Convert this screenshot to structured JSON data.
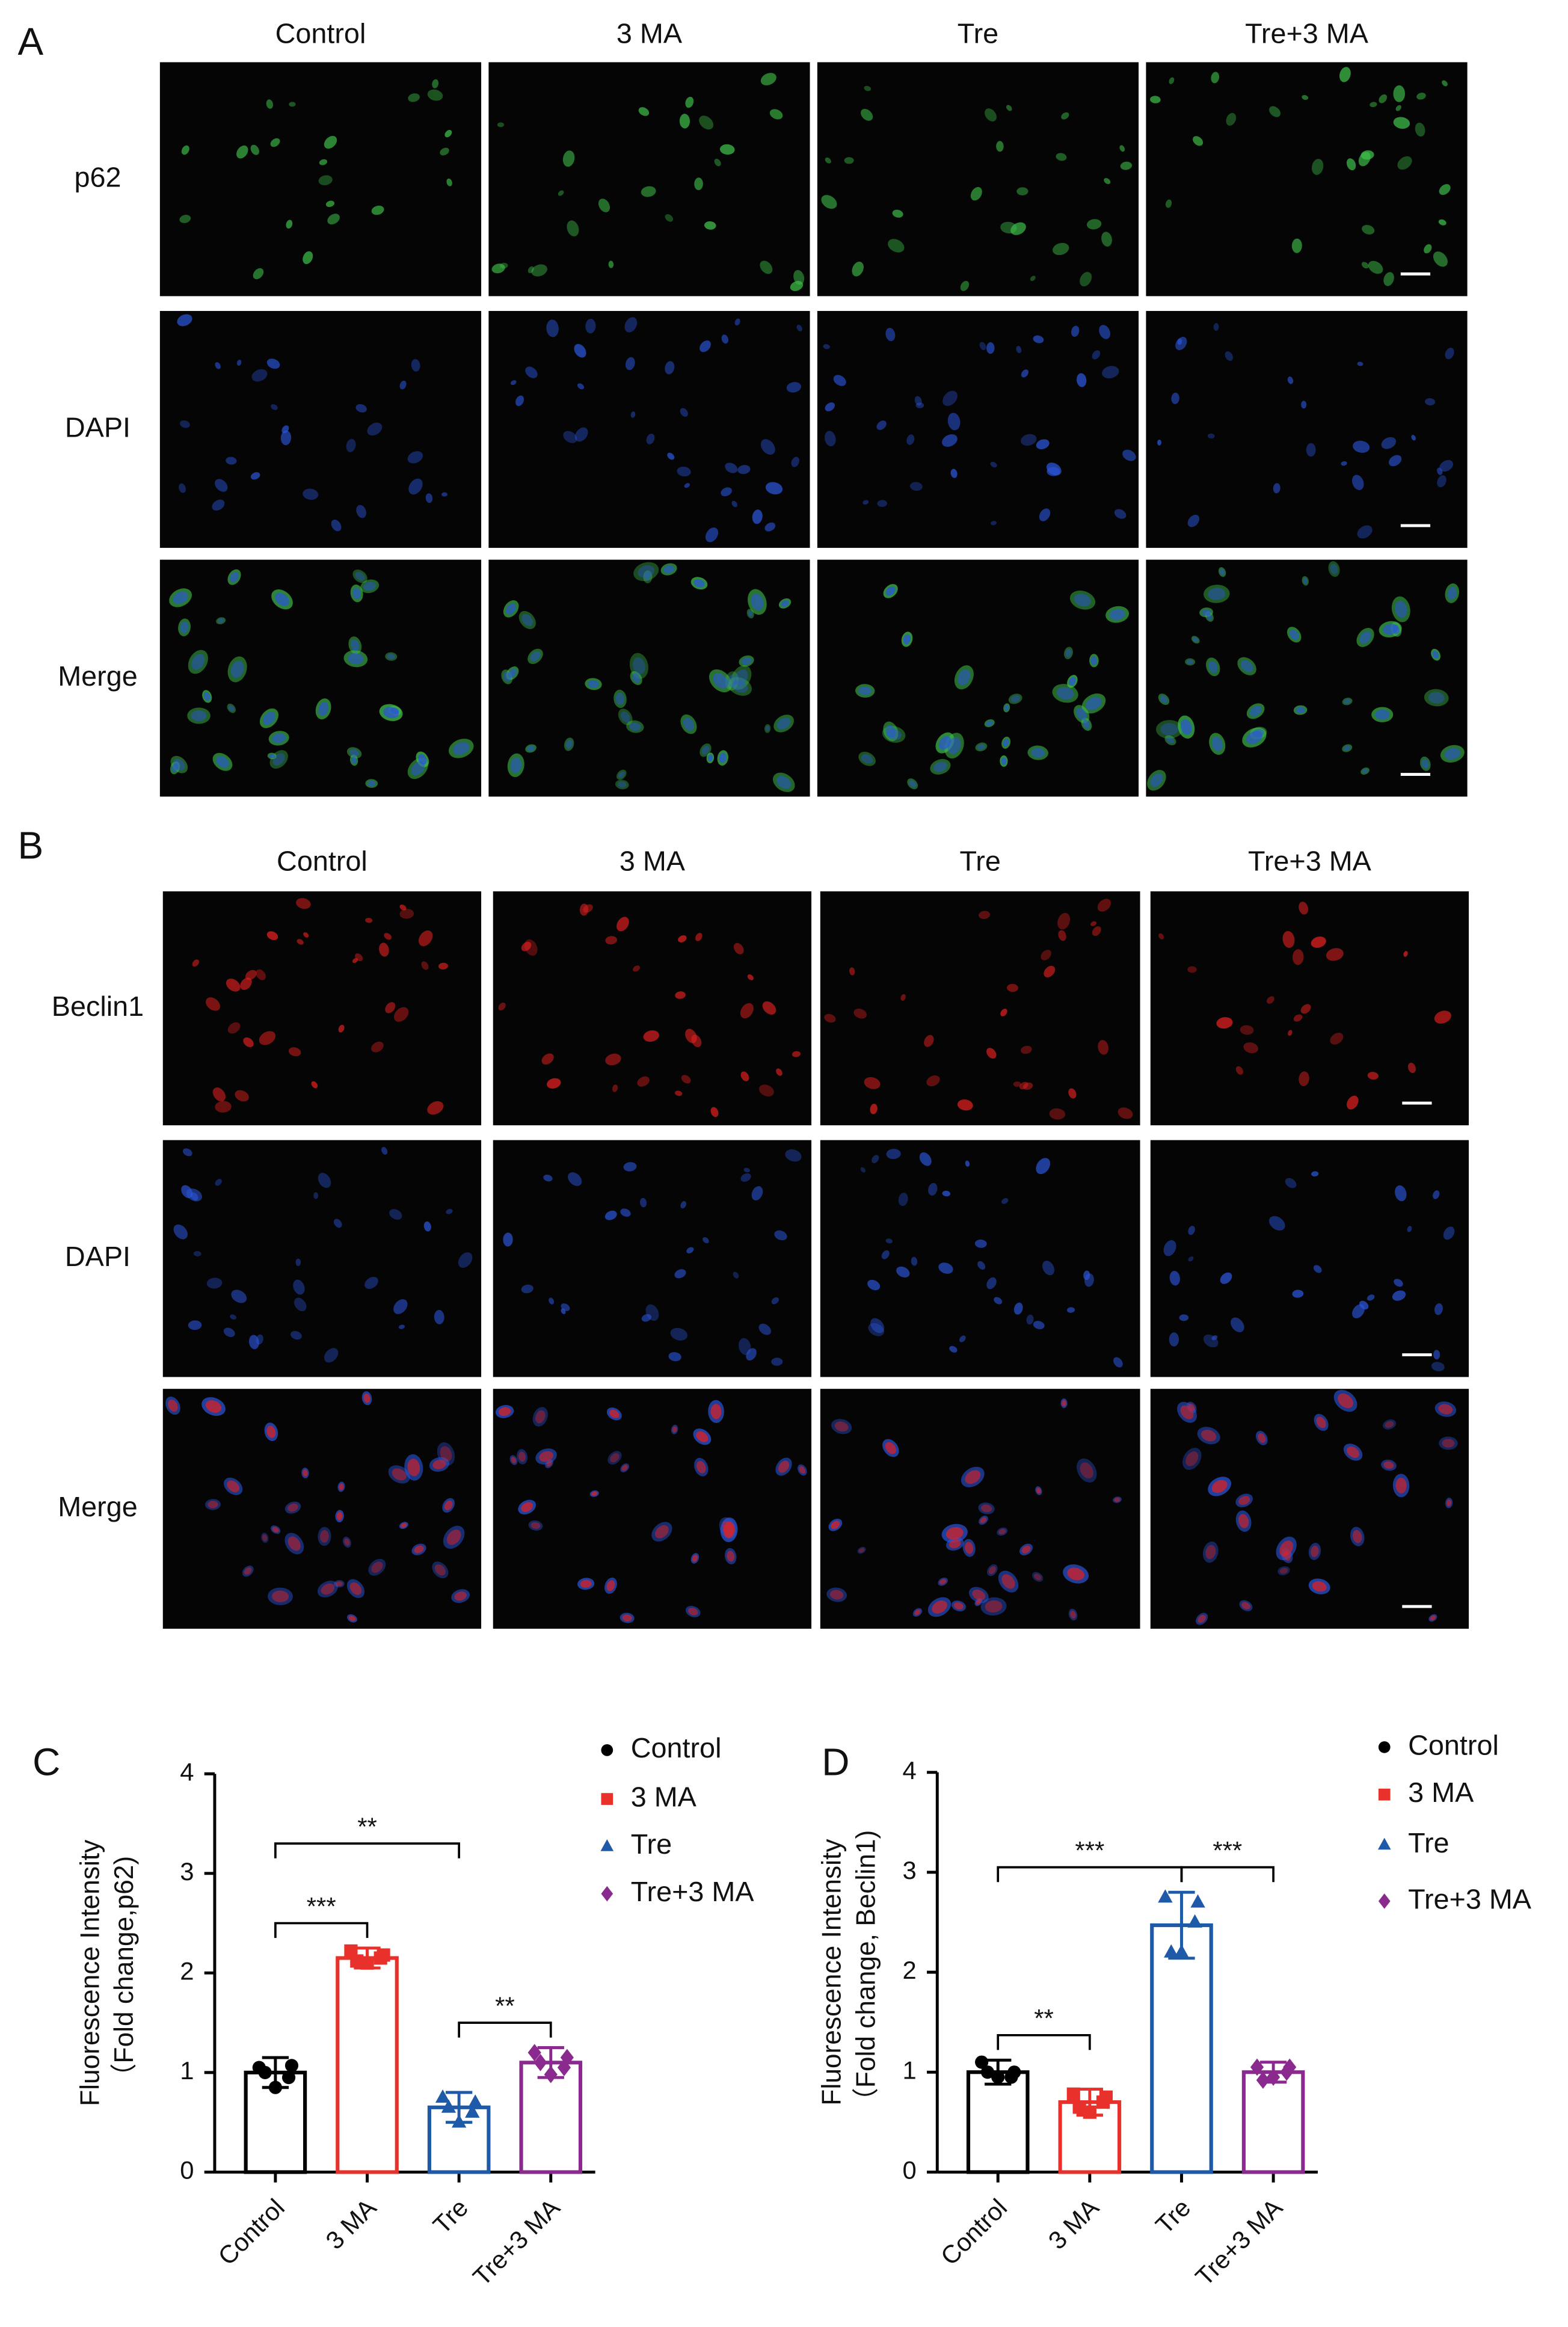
{
  "panels": [
    {
      "letter": "A",
      "columns": [
        "Control",
        "3 MA",
        "Tre",
        "Tre+3 MA"
      ],
      "rows": [
        "p62",
        "DAPI",
        "Merge"
      ]
    },
    {
      "letter": "B",
      "columns": [
        "Control",
        "3 MA",
        "Tre",
        "Tre+3 MA"
      ],
      "rows": [
        "Beclin1",
        "DAPI",
        "Merge"
      ]
    }
  ],
  "chart_data": [
    {
      "type": "bar",
      "letter": "C",
      "ylabel": [
        "Fluorescence Intensity",
        "（Fold change,p62)"
      ],
      "categories": [
        "Control",
        "3 MA",
        "Tre",
        "Tre+3 MA"
      ],
      "values": [
        1.0,
        2.15,
        0.65,
        1.1
      ],
      "errors": [
        0.15,
        0.1,
        0.15,
        0.15
      ],
      "points": [
        [
          1.05,
          1.07,
          0.95,
          0.85,
          1.0
        ],
        [
          2.22,
          2.18,
          2.15,
          2.1,
          2.12
        ],
        [
          0.75,
          0.7,
          0.6,
          0.5,
          0.65
        ],
        [
          1.2,
          1.15,
          1.05,
          0.98,
          1.1
        ]
      ],
      "colors": [
        "#000000",
        "#e8312a",
        "#1f5aa8",
        "#8b2a8e"
      ],
      "markers": [
        "circle",
        "square",
        "triangle",
        "diamond"
      ],
      "annotations": [
        {
          "between": [
            0,
            1
          ],
          "label": "***"
        },
        {
          "between": [
            2,
            3
          ],
          "label": "**"
        },
        {
          "between": [
            0,
            2
          ],
          "label": "**"
        }
      ],
      "ylim": [
        0,
        4
      ],
      "yticks": [
        0,
        1,
        2,
        3,
        4
      ]
    },
    {
      "type": "bar",
      "letter": "D",
      "ylabel": [
        "Fluorescence Intensity",
        "（Fold change, Beclin1)"
      ],
      "categories": [
        "Control",
        "3 MA",
        "Tre",
        "Tre+3 MA"
      ],
      "values": [
        1.0,
        0.7,
        2.47,
        1.0
      ],
      "errors": [
        0.12,
        0.13,
        0.33,
        0.1
      ],
      "points": [
        [
          1.1,
          1.0,
          0.95,
          0.95,
          1.0
        ],
        [
          0.78,
          0.75,
          0.7,
          0.6,
          0.65
        ],
        [
          2.75,
          2.7,
          2.5,
          2.2,
          2.2
        ],
        [
          1.05,
          1.05,
          1.0,
          0.95,
          0.92
        ]
      ],
      "colors": [
        "#000000",
        "#e8312a",
        "#1f5aa8",
        "#8b2a8e"
      ],
      "markers": [
        "circle",
        "square",
        "triangle",
        "diamond"
      ],
      "annotations": [
        {
          "between": [
            0,
            1
          ],
          "label": "**"
        },
        {
          "between": [
            0,
            2
          ],
          "label": "***"
        },
        {
          "between": [
            2,
            3
          ],
          "label": "***"
        }
      ],
      "ylim": [
        0,
        4
      ],
      "yticks": [
        0,
        1,
        2,
        3,
        4
      ]
    }
  ]
}
